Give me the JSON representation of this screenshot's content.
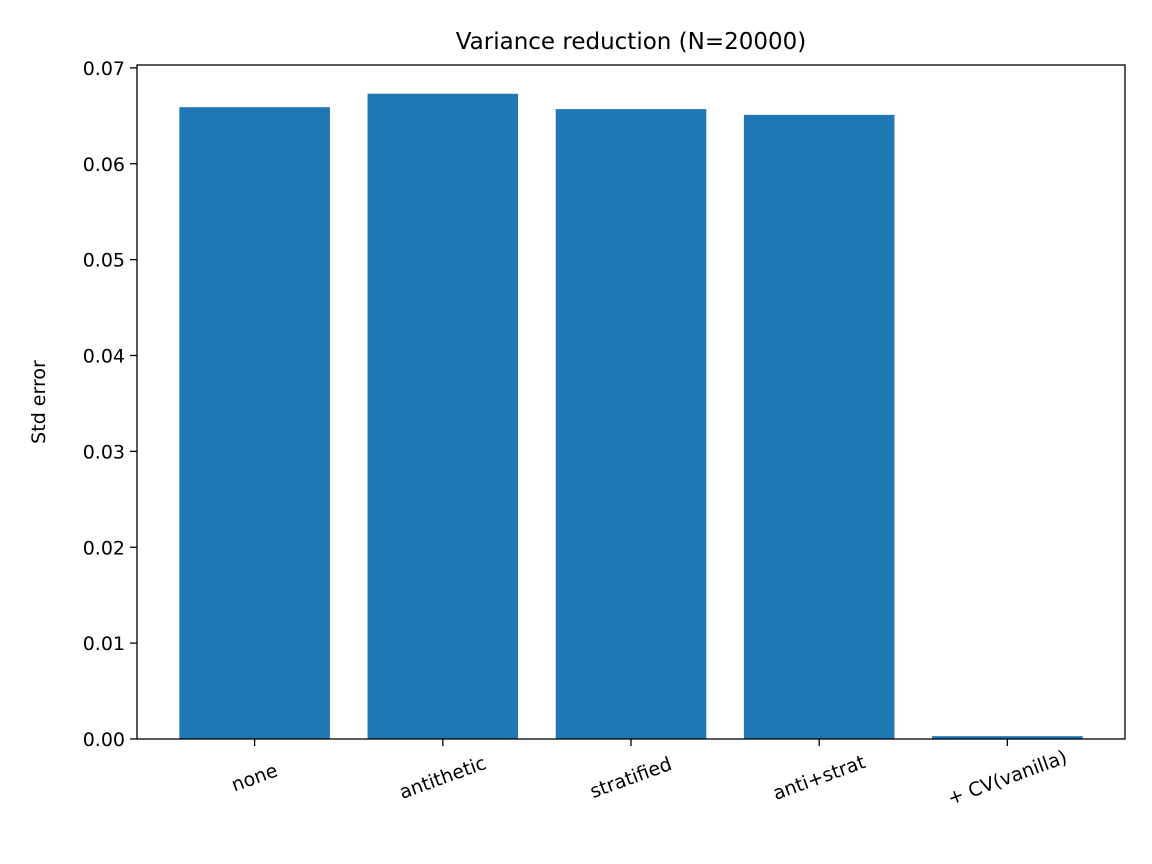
{
  "chart_data": {
    "type": "bar",
    "title": "Variance reduction (N=20000)",
    "xlabel": "",
    "ylabel": "Std error",
    "categories": [
      "none",
      "antithetic",
      "stratified",
      "anti+strat",
      "+ CV(vanilla)"
    ],
    "values": [
      0.0659,
      0.0673,
      0.0657,
      0.0651,
      0.0003
    ],
    "ylim": [
      0,
      0.0703
    ],
    "yticks": [
      "0.00",
      "0.01",
      "0.02",
      "0.03",
      "0.04",
      "0.05",
      "0.06",
      "0.07"
    ],
    "grid": false,
    "bar_color": "#1f77b4"
  }
}
